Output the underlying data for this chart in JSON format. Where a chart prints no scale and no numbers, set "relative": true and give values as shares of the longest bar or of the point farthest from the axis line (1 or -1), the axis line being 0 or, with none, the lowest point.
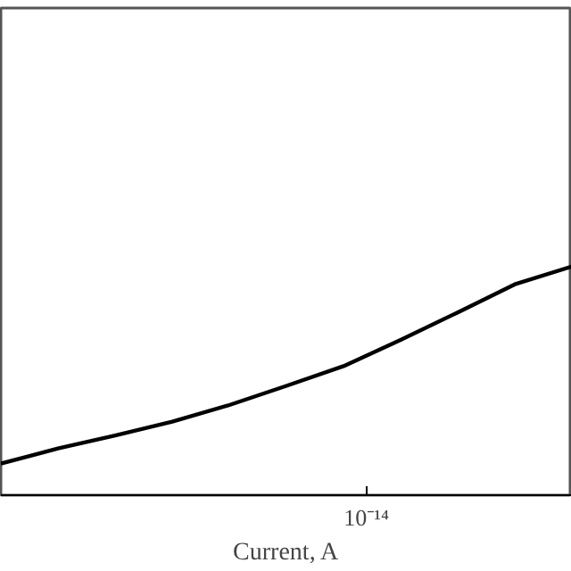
{
  "chart_data": {
    "type": "line",
    "relative": true,
    "xlabel": "Current, A",
    "annotations": [
      "10⁻¹⁴"
    ],
    "grid": false,
    "marker": "none",
    "line_style": "solid",
    "categories": [
      null,
      null,
      null,
      null,
      null,
      null,
      null,
      null,
      null,
      null,
      null
    ],
    "series": [
      {
        "color": "#000000",
        "values": [
          0.138,
          0.204,
          0.261,
          0.321,
          0.394,
          0.478,
          0.564,
          0.679,
          0.799,
          0.922,
          1
        ]
      }
    ]
  }
}
